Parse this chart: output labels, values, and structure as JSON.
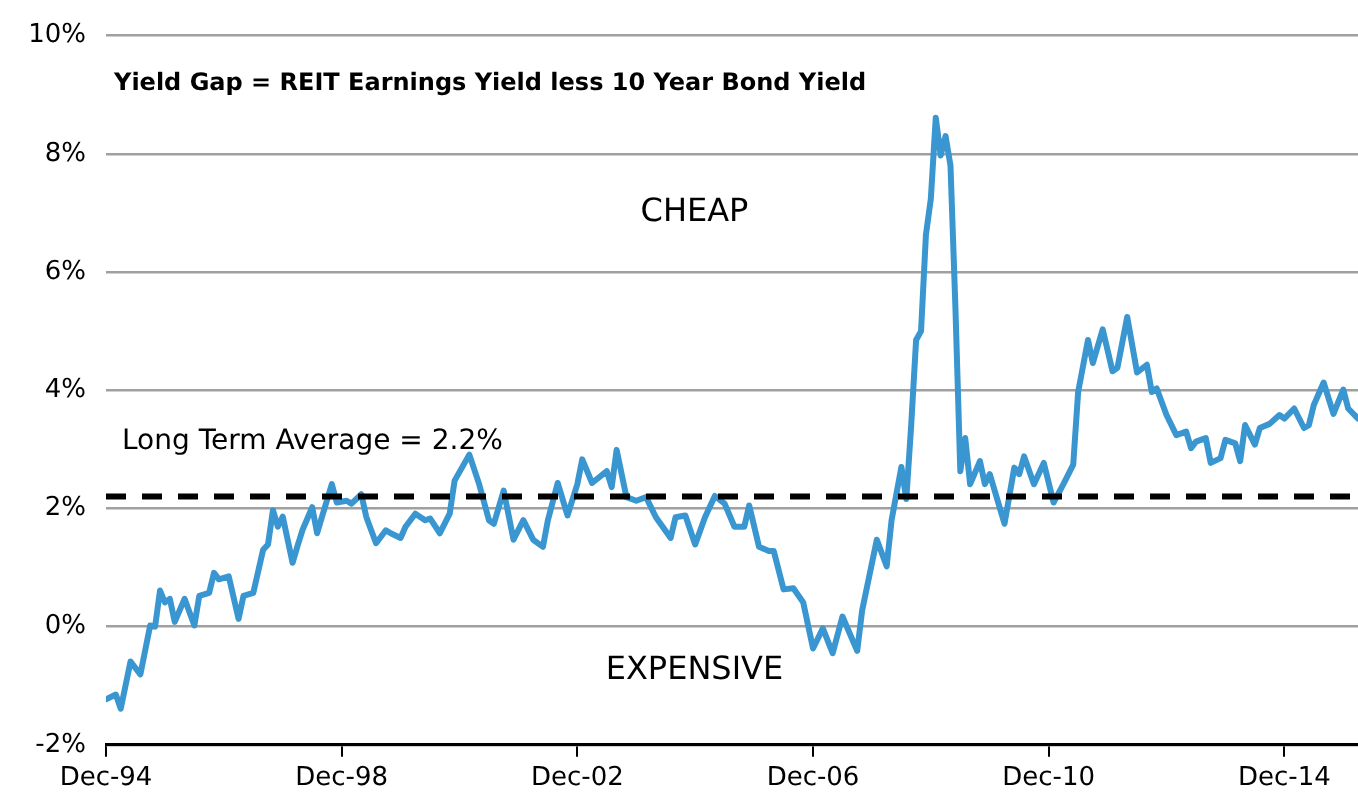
{
  "chart_data": {
    "type": "line",
    "title": "Yield Gap = REIT Earnings Yield less 10 Year Bond Yield",
    "annotations": [
      "CHEAP",
      "EXPENSIVE"
    ],
    "x": [
      "1994-12",
      "1995-02",
      "1995-03",
      "1995-05",
      "1995-07",
      "1995-09",
      "1995-10",
      "1995-11",
      "1995-12",
      "1996-01",
      "1996-02",
      "1996-04",
      "1996-06",
      "1996-07",
      "1996-09",
      "1996-10",
      "1996-11",
      "1997-01",
      "1997-03",
      "1997-04",
      "1997-06",
      "1997-08",
      "1997-09",
      "1997-10",
      "1997-11",
      "1997-12",
      "1998-02",
      "1998-03",
      "1998-04",
      "1998-06",
      "1998-07",
      "1998-08",
      "1998-10",
      "1998-11",
      "1999-01",
      "1999-02",
      "1999-04",
      "1999-05",
      "1999-07",
      "1999-09",
      "1999-10",
      "1999-12",
      "2000-01",
      "2000-03",
      "2000-05",
      "2000-06",
      "2000-08",
      "2000-10",
      "2000-11",
      "2001-02",
      "2001-04",
      "2001-06",
      "2001-07",
      "2001-09",
      "2001-11",
      "2002-01",
      "2002-03",
      "2002-05",
      "2002-06",
      "2002-08",
      "2002-10",
      "2002-12",
      "2003-01",
      "2003-03",
      "2003-06",
      "2003-07",
      "2003-08",
      "2003-10",
      "2003-12",
      "2004-02",
      "2004-04",
      "2004-07",
      "2004-08",
      "2004-10",
      "2004-12",
      "2005-02",
      "2005-04",
      "2005-06",
      "2005-08",
      "2005-10",
      "2005-11",
      "2006-01",
      "2006-03",
      "2006-04",
      "2006-06",
      "2006-08",
      "2006-10",
      "2006-12",
      "2007-02",
      "2007-04",
      "2007-06",
      "2007-09",
      "2007-10",
      "2008-01",
      "2008-03",
      "2008-04",
      "2008-06",
      "2008-07",
      "2008-08",
      "2008-09",
      "2008-10",
      "2008-11",
      "2008-12",
      "2009-01",
      "2009-02",
      "2009-03",
      "2009-04",
      "2009-05",
      "2009-06",
      "2009-07",
      "2009-08",
      "2009-10",
      "2009-11",
      "2009-12",
      "2010-03",
      "2010-05",
      "2010-06",
      "2010-07",
      "2010-09",
      "2010-11",
      "2011-01",
      "2011-03",
      "2011-05",
      "2011-06",
      "2011-08",
      "2011-09",
      "2011-11",
      "2012-01",
      "2012-02",
      "2012-04",
      "2012-06",
      "2012-08",
      "2012-09",
      "2012-10",
      "2012-12",
      "2013-02",
      "2013-04",
      "2013-05",
      "2013-06",
      "2013-08",
      "2013-09",
      "2013-11",
      "2013-12",
      "2014-02",
      "2014-03",
      "2014-04",
      "2014-06",
      "2014-07",
      "2014-09",
      "2014-11",
      "2014-12",
      "2015-02",
      "2015-04",
      "2015-05",
      "2015-06",
      "2015-08",
      "2015-10",
      "2015-12",
      "2016-01",
      "2016-03"
    ],
    "series": [
      {
        "color": "#3a96d0",
        "values": [
          -1.23,
          -1.15,
          -1.39,
          -0.59,
          -0.81,
          0.02,
          0.0,
          0.61,
          0.41,
          0.47,
          0.08,
          0.47,
          0.02,
          0.52,
          0.57,
          0.91,
          0.8,
          0.85,
          0.13,
          0.52,
          0.57,
          1.3,
          1.39,
          1.97,
          1.69,
          1.86,
          1.08,
          1.36,
          1.63,
          2.02,
          1.58,
          1.86,
          2.41,
          2.1,
          2.13,
          2.08,
          2.24,
          1.86,
          1.41,
          1.63,
          1.58,
          1.5,
          1.69,
          1.91,
          1.8,
          1.83,
          1.58,
          1.91,
          2.47,
          2.91,
          2.41,
          1.8,
          1.74,
          2.3,
          1.47,
          1.8,
          1.47,
          1.35,
          1.8,
          2.43,
          1.88,
          2.41,
          2.83,
          2.43,
          2.63,
          2.36,
          2.99,
          2.19,
          2.13,
          2.19,
          1.85,
          1.5,
          1.85,
          1.88,
          1.39,
          1.85,
          2.21,
          2.08,
          1.69,
          1.69,
          2.05,
          1.35,
          1.28,
          1.28,
          0.63,
          0.65,
          0.41,
          -0.37,
          -0.03,
          -0.45,
          0.17,
          -0.41,
          0.27,
          1.47,
          1.02,
          1.8,
          2.7,
          2.16,
          3.41,
          4.85,
          5.0,
          6.63,
          7.24,
          8.61,
          7.97,
          8.3,
          7.8,
          5.41,
          2.63,
          3.19,
          2.41,
          2.8,
          2.41,
          2.58,
          1.74,
          2.69,
          2.58,
          2.88,
          2.41,
          2.77,
          2.1,
          2.41,
          2.74,
          3.97,
          4.85,
          4.46,
          5.03,
          4.32,
          4.38,
          5.24,
          4.3,
          4.43,
          3.97,
          4.03,
          3.58,
          3.24,
          3.3,
          3.02,
          3.13,
          3.19,
          2.77,
          2.85,
          3.16,
          3.1,
          2.8,
          3.41,
          3.08,
          3.36,
          3.43,
          3.58,
          3.52,
          3.69,
          3.36,
          3.41,
          3.75,
          4.13,
          3.6,
          4.01,
          3.69,
          3.52
        ]
      }
    ],
    "xlim": [
      "1994-12",
      "2016-03"
    ],
    "xticks": [
      {
        "value": "1994-12",
        "label": "Dec-94"
      },
      {
        "value": "1998-12",
        "label": "Dec-98"
      },
      {
        "value": "2002-12",
        "label": "Dec-02"
      },
      {
        "value": "2006-12",
        "label": "Dec-06"
      },
      {
        "value": "2010-12",
        "label": "Dec-10"
      },
      {
        "value": "2014-12",
        "label": "Dec-14"
      }
    ],
    "ylim": [
      -2,
      10
    ],
    "yticks": [
      {
        "value": -2,
        "label": "-2%"
      },
      {
        "value": 0,
        "label": "0%"
      },
      {
        "value": 2,
        "label": "2%"
      },
      {
        "value": 4,
        "label": "4%"
      },
      {
        "value": 6,
        "label": "6%"
      },
      {
        "value": 8,
        "label": "8%"
      },
      {
        "value": 10,
        "label": "10%"
      }
    ],
    "ref_lines": [
      {
        "axis": "y",
        "value": 2.2,
        "label": "Long Term Average = 2.2%",
        "color": "#000000",
        "line_style": "dashed"
      }
    ],
    "grid": "y",
    "legend": false,
    "marker": "none",
    "line_style": "solid"
  }
}
